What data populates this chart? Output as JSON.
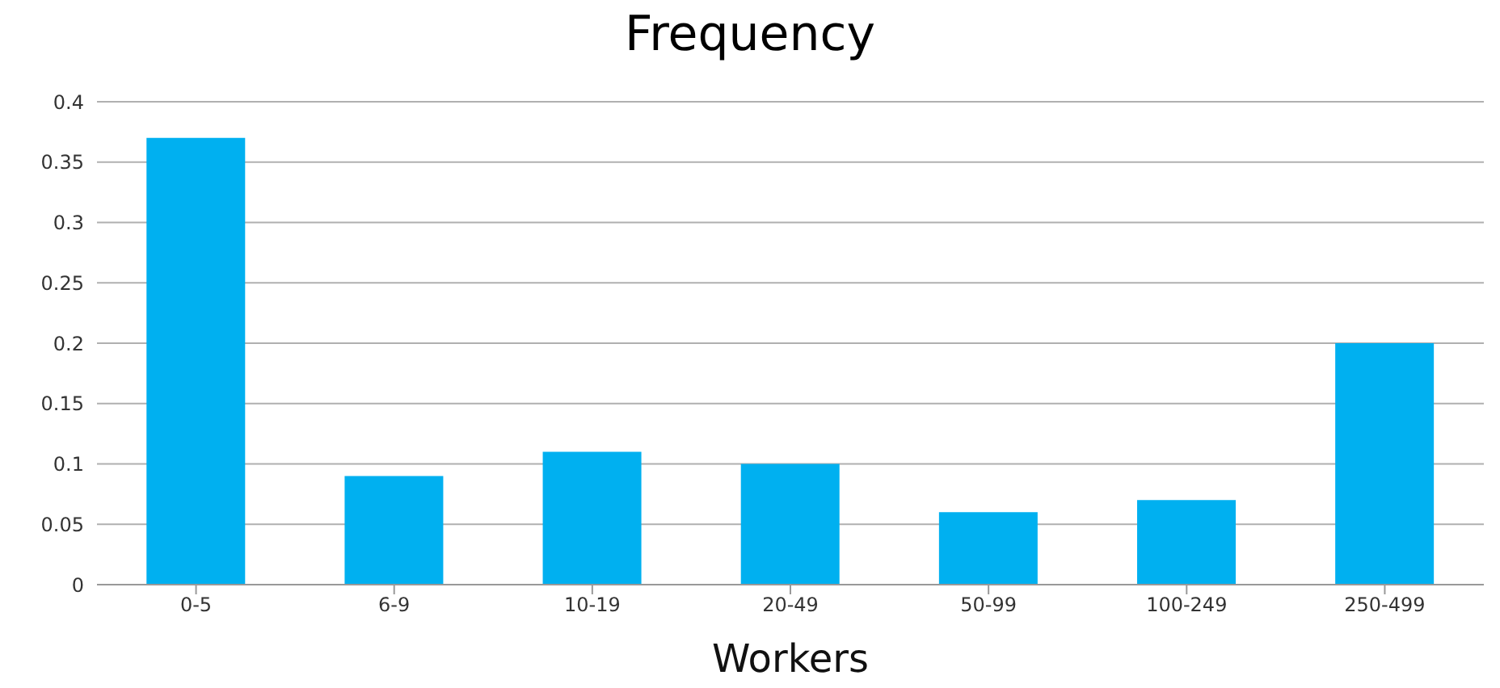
{
  "chart_data": {
    "type": "bar",
    "title": "Frequency",
    "xlabel": "Workers",
    "categories": [
      "0-5",
      "6-9",
      "10-19",
      "20-49",
      "50-99",
      "100-249",
      "250-499"
    ],
    "values": [
      0.37,
      0.09,
      0.11,
      0.1,
      0.06,
      0.07,
      0.2
    ],
    "color": "#00b0f0",
    "ylim": [
      0,
      0.4
    ],
    "yticks": [
      0,
      0.05,
      0.1,
      0.15,
      0.2,
      0.25,
      0.3,
      0.35,
      0.4
    ],
    "grid": "y",
    "legend": false
  }
}
